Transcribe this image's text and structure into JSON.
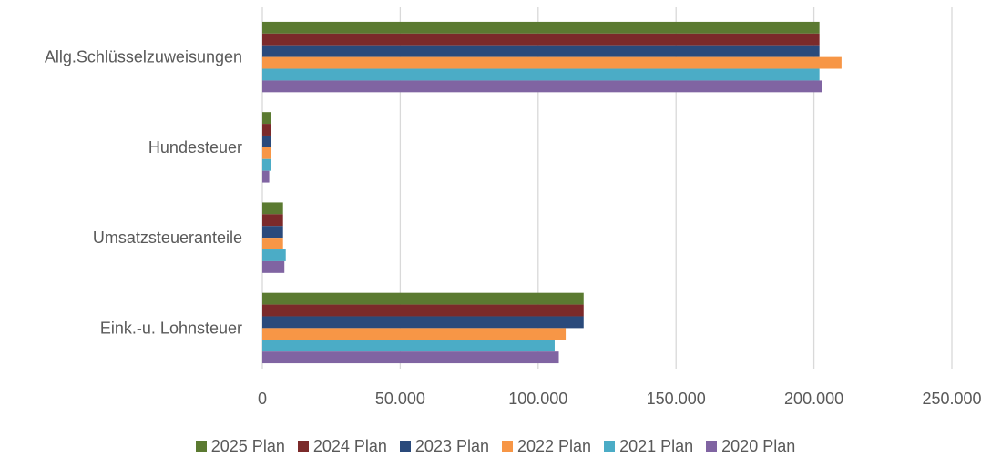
{
  "chart_data": {
    "type": "bar",
    "orientation": "horizontal",
    "categories": [
      "Allg.Schlüsselzuweisungen",
      "Hundesteuer",
      "Umsatzsteueranteile",
      "Eink.-u. Lohnsteuer"
    ],
    "series": [
      {
        "name": "2025 Plan",
        "color": "#5b7a31",
        "values": [
          202000,
          3000,
          7500,
          116500
        ]
      },
      {
        "name": "2024 Plan",
        "color": "#7b2a2a",
        "values": [
          202000,
          3000,
          7500,
          116500
        ]
      },
      {
        "name": "2023 Plan",
        "color": "#2a4a7b",
        "values": [
          202000,
          3000,
          7500,
          116500
        ]
      },
      {
        "name": "2022 Plan",
        "color": "#f79646",
        "values": [
          210000,
          3000,
          7500,
          110000
        ]
      },
      {
        "name": "2021 Plan",
        "color": "#4bacc6",
        "values": [
          202000,
          3000,
          8500,
          106000
        ]
      },
      {
        "name": "2020 Plan",
        "color": "#8064a2",
        "values": [
          203000,
          2500,
          8000,
          107500
        ]
      }
    ],
    "xlim": [
      0,
      250000
    ],
    "ticks": [
      0,
      50000,
      100000,
      150000,
      200000,
      250000
    ],
    "tick_labels": [
      "0",
      "50.000",
      "100.000",
      "150.000",
      "200.000",
      "250.000"
    ],
    "grid": true,
    "legend_position": "bottom",
    "title": "",
    "xlabel": "",
    "ylabel": ""
  }
}
